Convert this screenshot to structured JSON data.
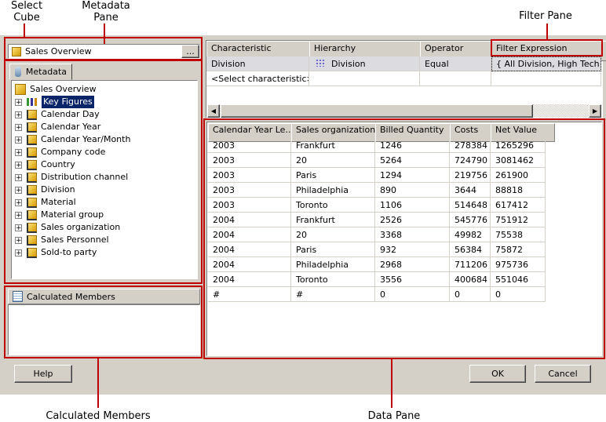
{
  "annotations": {
    "select_cube": "Select\nCube",
    "metadata_pane": "Metadata\nPane",
    "filter_pane": "Filter Pane",
    "calculated_members": "Calculated Members",
    "data_pane": "Data Pane"
  },
  "cube_selector": {
    "value": "Sales Overview",
    "browse_label": "..."
  },
  "metadata": {
    "tab_label": "Metadata",
    "root": "Sales Overview",
    "items": [
      "Key Figures",
      "Calendar Day",
      "Calendar Year",
      "Calendar Year/Month",
      "Company code",
      "Country",
      "Distribution channel",
      "Division",
      "Material",
      "Material group",
      "Sales organization",
      "Sales Personnel",
      "Sold-to party"
    ],
    "selected": "Key Figures"
  },
  "calculated_members": {
    "title": "Calculated Members"
  },
  "filter": {
    "columns": [
      "Characteristic",
      "Hierarchy",
      "Operator",
      "Filter Expression"
    ],
    "rows": [
      [
        "Division",
        "Division",
        "Equal",
        "{ All Division, High Tech }"
      ],
      [
        "<Select characteristic>",
        "",
        "",
        ""
      ]
    ]
  },
  "data": {
    "columns": [
      "Calendar Year Le...",
      "Sales organization...",
      "Billed Quantity",
      "Costs",
      "Net Value"
    ],
    "rows": [
      [
        "2003",
        "Frankfurt",
        "1246",
        "278384",
        "1265296"
      ],
      [
        "2003",
        "20",
        "5264",
        "724790",
        "3081462"
      ],
      [
        "2003",
        "Paris",
        "1294",
        "219756",
        "261900"
      ],
      [
        "2003",
        "Philadelphia",
        "890",
        "3644",
        "88818"
      ],
      [
        "2003",
        "Toronto",
        "1106",
        "514648",
        "617412"
      ],
      [
        "2004",
        "Frankfurt",
        "2526",
        "545776",
        "751912"
      ],
      [
        "2004",
        "20",
        "3368",
        "49982",
        "75538"
      ],
      [
        "2004",
        "Paris",
        "932",
        "56384",
        "75872"
      ],
      [
        "2004",
        "Philadelphia",
        "2968",
        "711206",
        "975736"
      ],
      [
        "2004",
        "Toronto",
        "3556",
        "400684",
        "551046"
      ],
      [
        "#",
        "#",
        "0",
        "0",
        "0"
      ]
    ]
  },
  "buttons": {
    "help": "Help",
    "ok": "OK",
    "cancel": "Cancel"
  }
}
